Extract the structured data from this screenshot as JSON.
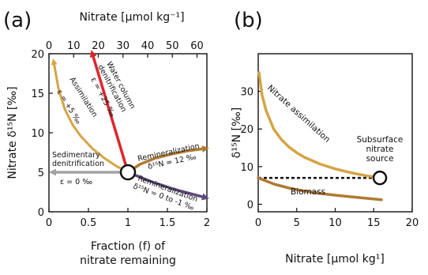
{
  "chart_data": [
    {
      "type": "line",
      "panel_label": "(a)",
      "xlabel_line1": "Fraction (f) of",
      "xlabel_line2": "nitrate remaining",
      "ylabel": "Nitrate δ¹⁵N [‰]",
      "top_xlabel": "Nitrate [μmol kg⁻¹]",
      "xlim": [
        0,
        2
      ],
      "ylim": [
        0,
        20
      ],
      "top_xlim": [
        0,
        64
      ],
      "xticks": [
        "0",
        "0.5",
        "1",
        "1.5",
        "2"
      ],
      "yticks": [
        "0",
        "5",
        "10",
        "15",
        "20"
      ],
      "top_xticks": [
        "0",
        "10",
        "20",
        "30",
        "40",
        "50",
        "60"
      ],
      "start_point": {
        "f": 1,
        "d15n": 5
      },
      "series": [
        {
          "key": "assimilation",
          "color": "#d4a544",
          "x": [
            1.0,
            0.85,
            0.7,
            0.55,
            0.4,
            0.3,
            0.2,
            0.12,
            0.06
          ],
          "y": [
            5.0,
            5.8,
            6.8,
            8.0,
            9.6,
            11.0,
            13.0,
            15.6,
            19.0
          ]
        },
        {
          "key": "water_column_denitrification",
          "color": "#e0242b",
          "x": [
            1.0,
            0.55
          ],
          "y": [
            5.0,
            20.0
          ]
        },
        {
          "key": "sedimentary_denitrification",
          "color": "#a3a3a3",
          "x": [
            1.0,
            0.05
          ],
          "y": [
            5.0,
            5.0
          ]
        },
        {
          "key": "remineralization_12",
          "color": "#b07a33",
          "x": [
            1.0,
            1.15,
            1.35,
            1.55,
            1.75,
            1.98
          ],
          "y": [
            5.0,
            6.0,
            6.8,
            7.3,
            7.7,
            8.0
          ]
        },
        {
          "key": "remineralization_0",
          "color": "#5b4a78",
          "x": [
            1.0,
            1.3,
            1.6,
            1.98
          ],
          "y": [
            5.0,
            3.8,
            2.8,
            1.8
          ]
        }
      ],
      "annotations": {
        "assimilation": "Assimilation",
        "assimilation_eps": "ε = +5 ‰",
        "water_col_1": "Water column",
        "water_col_2": "denitrification",
        "water_col_eps": "ε = +25 ‰",
        "sed_1": "Sedimentary",
        "sed_2": "denitrification",
        "sed_eps": "ε = 0 ‰",
        "remin1": "Remineralization",
        "remin1_val": "δ¹⁵N = 12 ‰",
        "remin2": "Remineralization",
        "remin2_val": "δ¹⁵N = 0 to -1 ‰"
      }
    },
    {
      "type": "line",
      "panel_label": "(b)",
      "xlabel": "Nitrate [μmol kg¹]",
      "ylabel": "δ¹⁵N [‰]",
      "xlim": [
        0,
        20
      ],
      "ylim": [
        -2,
        40
      ],
      "xticks": [
        "0",
        "5",
        "10",
        "15",
        "20"
      ],
      "yticks": [
        "0",
        "10",
        "20",
        "30"
      ],
      "source_point": {
        "x": 15.8,
        "y": 7
      },
      "series": [
        {
          "name": "Nitrate assimilation",
          "color": "#d4a544",
          "x": [
            0.1,
            0.5,
            1,
            2,
            3,
            4,
            5,
            6,
            8,
            10,
            12,
            14,
            15.8
          ],
          "y": [
            35,
            29,
            25,
            20,
            17.2,
            15.2,
            13.7,
            12.5,
            10.7,
            9.4,
            8.4,
            7.6,
            7.0
          ]
        },
        {
          "name": "Biomass",
          "color": "#b07a33",
          "x": [
            0,
            2,
            4,
            6,
            8,
            10,
            12,
            14,
            16
          ],
          "y": [
            7.0,
            5.4,
            4.3,
            3.5,
            2.9,
            2.4,
            2.0,
            1.6,
            1.2
          ]
        }
      ],
      "hline": {
        "y": 7,
        "x": [
          0,
          15.8
        ]
      },
      "annotations": {
        "source_1": "Subsurface",
        "source_2": "nitrate",
        "source_3": "source"
      }
    }
  ]
}
